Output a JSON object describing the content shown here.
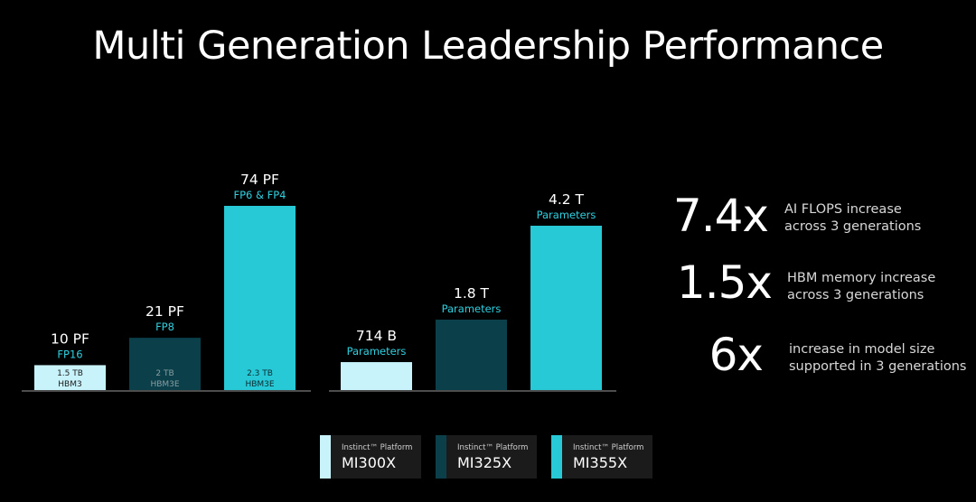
{
  "title": "Multi Generation Leadership Performance",
  "colors": {
    "background": "#000000",
    "mi300x": "#c8f3fa",
    "mi325x": "#0b3f4a",
    "mi355x": "#27c9d6",
    "accent_text": "#2fd0e0",
    "axis": "#9a9a9a"
  },
  "chart_data": [
    {
      "type": "bar",
      "title": "",
      "categories": [
        "MI300X",
        "MI325X",
        "MI355X"
      ],
      "values": [
        10,
        21,
        74
      ],
      "value_labels": [
        "10 PF",
        "21 PF",
        "74 PF"
      ],
      "sub_labels": [
        "FP16",
        "FP8",
        "FP6 & FP4"
      ],
      "memory_labels": [
        [
          "1.5 TB",
          "HBM3"
        ],
        [
          "2 TB",
          "HBM3E"
        ],
        [
          "2.3 TB",
          "HBM3E"
        ]
      ],
      "unit": "PF",
      "ylim": [
        0,
        74
      ]
    },
    {
      "type": "bar",
      "title": "",
      "categories": [
        "MI300X",
        "MI325X",
        "MI355X"
      ],
      "values": [
        714,
        1800,
        4200
      ],
      "value_labels": [
        "714 B",
        "1.8 T",
        "4.2 T"
      ],
      "sub_labels": [
        "Parameters",
        "Parameters",
        "Parameters"
      ],
      "unit": "Parameters",
      "ylim": [
        0,
        4200
      ]
    }
  ],
  "stats": [
    {
      "value": "7.4x",
      "line1": "AI FLOPS increase",
      "line2": "across 3 generations"
    },
    {
      "value": "1.5x",
      "line1": "HBM memory increase",
      "line2": "across 3 generations"
    },
    {
      "value": "6x",
      "line1": "increase in model size",
      "line2": "supported in 3 generations"
    }
  ],
  "legend": [
    {
      "sub": "Instinct™ Platform",
      "name": "MI300X"
    },
    {
      "sub": "Instinct™ Platform",
      "name": "MI325X"
    },
    {
      "sub": "Instinct™ Platform",
      "name": "MI355X"
    }
  ]
}
